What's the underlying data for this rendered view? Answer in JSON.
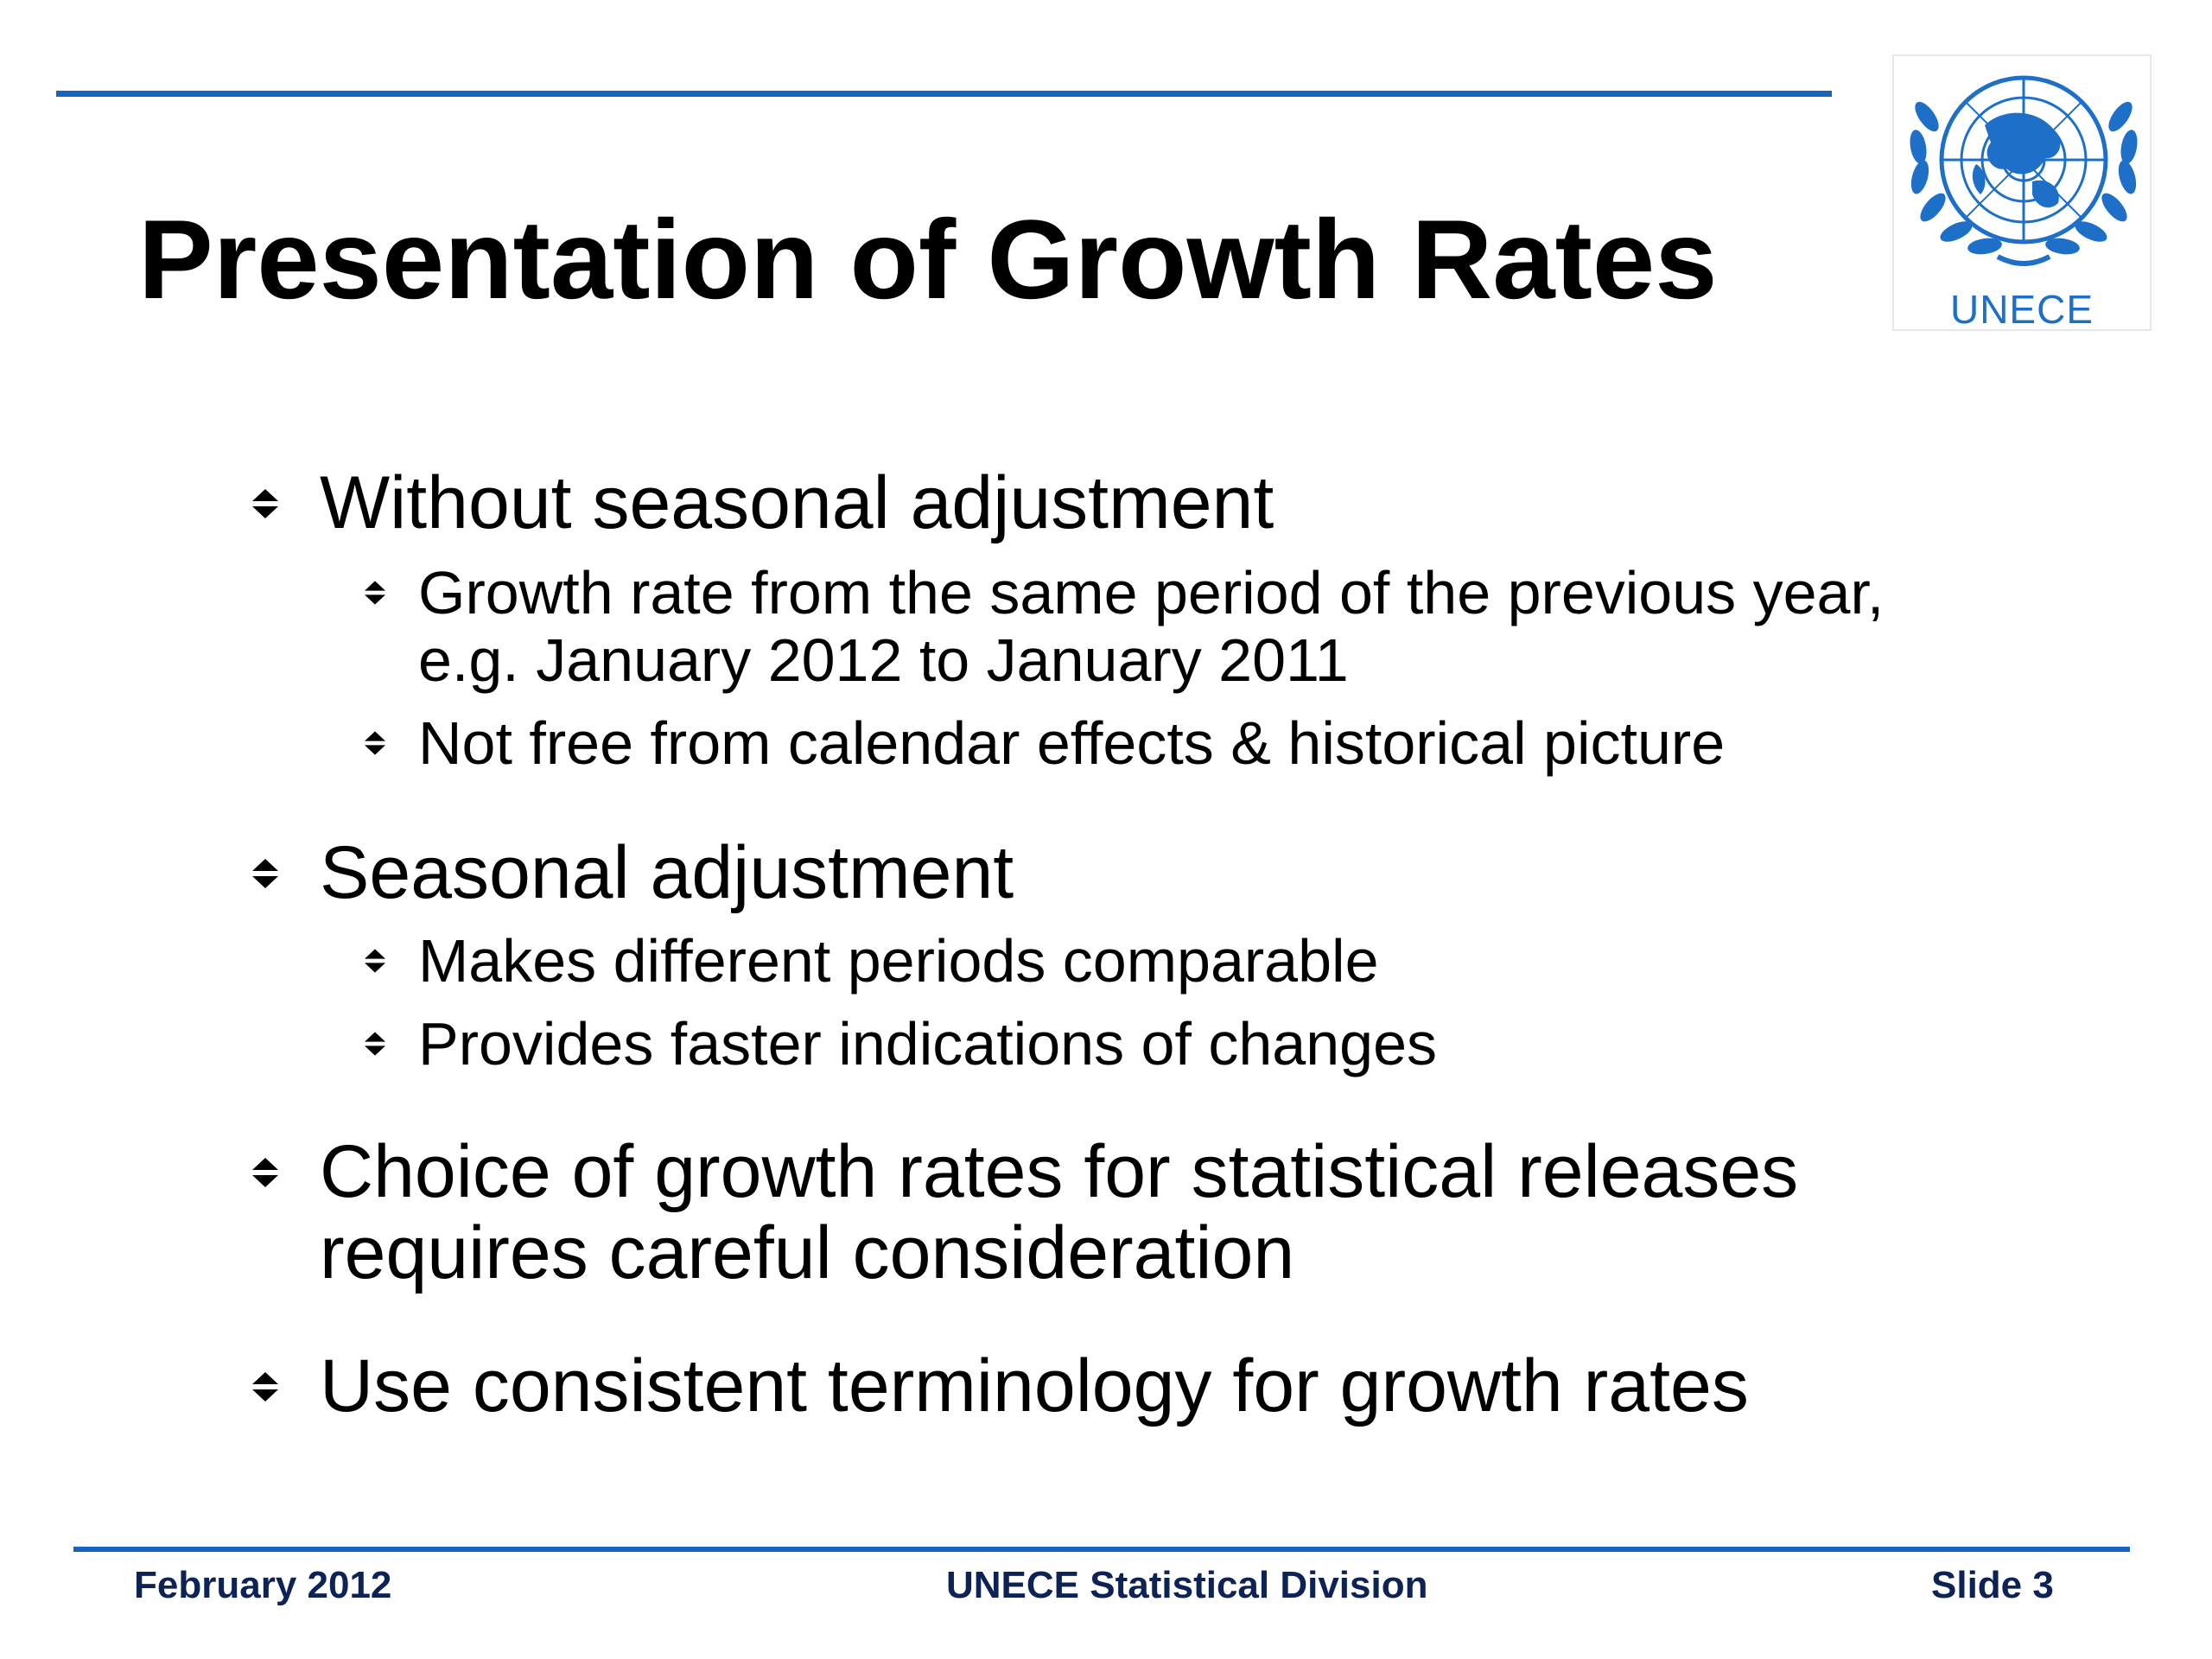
{
  "slide": {
    "title": "Presentation of Growth Rates",
    "logo": {
      "label": "UNECE",
      "icon": "un-emblem-icon",
      "color": "#1e6fc8"
    },
    "bullets": [
      {
        "text": "Without seasonal adjustment",
        "sub": [
          {
            "lines": [
              "Growth rate from the same period of the previous year,",
              "e.g. January 2012 to January 2011"
            ]
          },
          {
            "lines": [
              "Not free from calendar effects & historical picture"
            ]
          }
        ]
      },
      {
        "text": "Seasonal adjustment",
        "sub": [
          {
            "lines": [
              "Makes different periods comparable"
            ]
          },
          {
            "lines": [
              "Provides faster indications of changes"
            ]
          }
        ]
      },
      {
        "lines": [
          "Choice of growth rates for statistical releases",
          "requires careful consideration"
        ]
      },
      {
        "text": "Use consistent terminology for growth rates"
      }
    ],
    "bullet_icon": "double-arrow-bullet-icon",
    "accent_color": "#1565c0"
  },
  "footer": {
    "left": "February 2012",
    "center": "UNECE Statistical Division",
    "right": "Slide 3",
    "color": "#0d2255"
  }
}
